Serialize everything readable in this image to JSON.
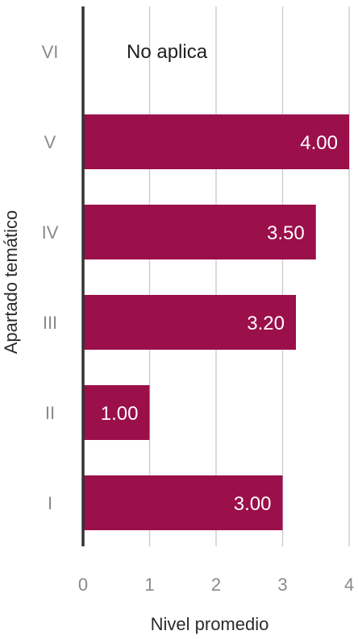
{
  "chart_data": {
    "type": "bar",
    "orientation": "horizontal",
    "categories": [
      "VI",
      "V",
      "IV",
      "III",
      "II",
      "I"
    ],
    "values": [
      null,
      4.0,
      3.5,
      3.2,
      1.0,
      3.0
    ],
    "data_labels": [
      "No aplica",
      "4.00",
      "3.50",
      "3.20",
      "1.00",
      "3.00"
    ],
    "xlabel": "Nivel promedio",
    "ylabel": "Apartado temático",
    "xlim": [
      0,
      4
    ],
    "xticks": [
      "0",
      "1",
      "2",
      "3",
      "4"
    ],
    "grid": true,
    "bar_color": "#9b0f4a",
    "grid_color": "#cfcfcf",
    "axis_color": "#333333"
  }
}
